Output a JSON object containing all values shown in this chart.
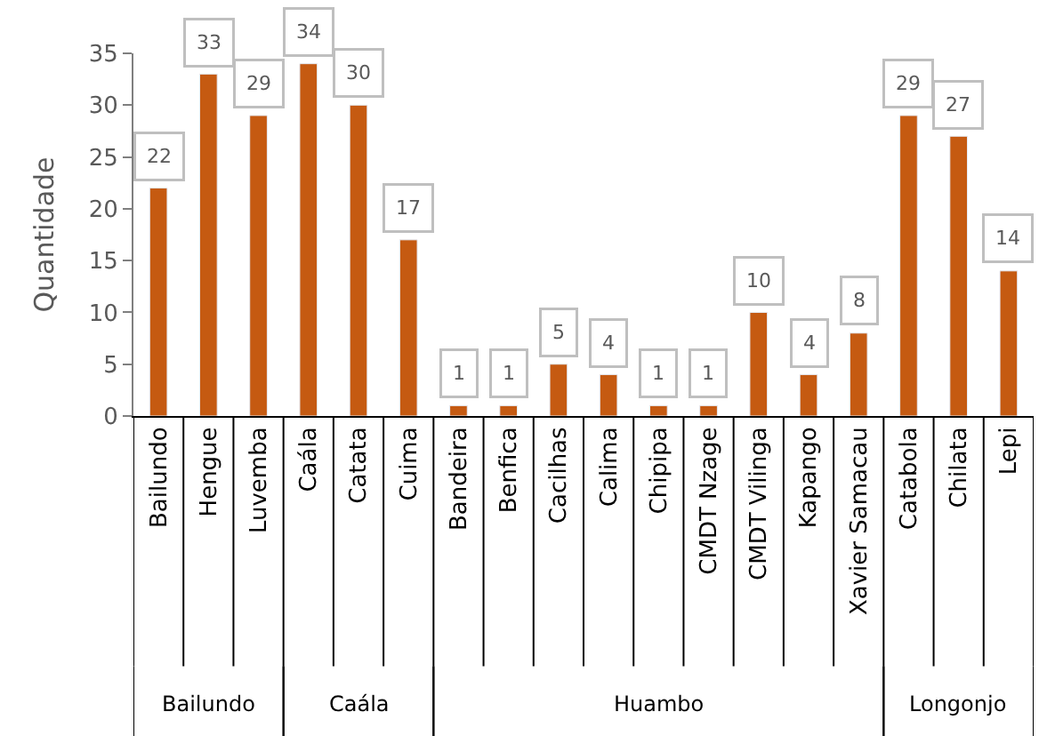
{
  "chart_data": {
    "type": "bar",
    "ylabel": "Quantidade",
    "categories": [
      "Bailundo",
      "Hengue",
      "Luvemba",
      "Caála",
      "Catata",
      "Cuima",
      "Bandeira",
      "Benfica",
      "Cacilhas",
      "Calima",
      "Chipipa",
      "CMDT Nzage",
      "CMDT Vilinga",
      "Kapango",
      "Xavier Samacau",
      "Catabola",
      "Chilata",
      "Lepi"
    ],
    "values": [
      22,
      33,
      29,
      34,
      30,
      17,
      1,
      1,
      5,
      4,
      1,
      1,
      10,
      4,
      8,
      29,
      27,
      14
    ],
    "color": "#c55a11",
    "ylim": [
      0,
      35
    ],
    "yticks": [
      0,
      5,
      10,
      15,
      20,
      25,
      30,
      35
    ],
    "data_labels": true,
    "annotations": [
      "Bailundo",
      "Caála",
      "Huambo",
      "Longonjo"
    ]
  }
}
